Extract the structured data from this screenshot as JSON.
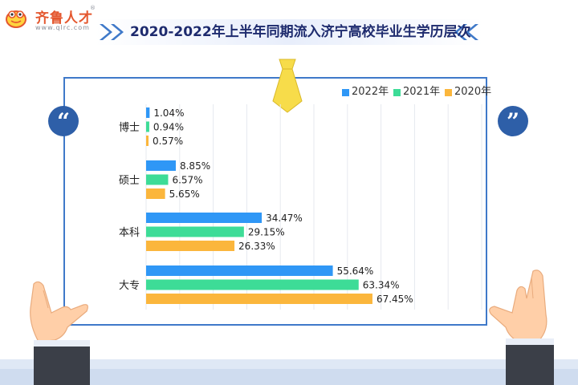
{
  "brand": {
    "name": "齐鲁人才",
    "url": "www.qlrc.com",
    "registered": "®"
  },
  "title": "2020-2022年上半年同期流入济宁高校毕业生学历层次",
  "chart_data": {
    "type": "bar",
    "orientation": "horizontal",
    "categories": [
      "博士",
      "硕士",
      "本科",
      "大专"
    ],
    "series": [
      {
        "name": "2022年",
        "color": "#2f97f6",
        "values": [
          1.04,
          8.85,
          34.47,
          55.64
        ],
        "labels": [
          "1.04%",
          "8.85%",
          "34.47%",
          "55.64%"
        ]
      },
      {
        "name": "2021年",
        "color": "#3ddc97",
        "values": [
          0.94,
          6.57,
          29.15,
          63.34
        ],
        "labels": [
          "0.94%",
          "6.57%",
          "29.15%",
          "63.34%"
        ]
      },
      {
        "name": "2020年",
        "color": "#fbb63c",
        "values": [
          0.57,
          5.65,
          26.33,
          67.45
        ],
        "labels": [
          "0.57%",
          "5.65%",
          "26.33%",
          "67.45%"
        ]
      }
    ],
    "xlim": [
      0,
      100
    ],
    "legend_position": "top-right",
    "grid": true,
    "axis_unit": "%"
  },
  "colors": {
    "frame": "#3f79c9",
    "title_text": "#1e2b6e",
    "brand": "#e4572e",
    "tie": "#f7dc4a"
  },
  "icons": [
    "qlrc-frog-logo",
    "open-quote-icon",
    "close-quote-icon",
    "tie-icon",
    "double-chevron-right-icon",
    "double-chevron-left-icon",
    "hand-holding-board-left",
    "hand-holding-board-right"
  ]
}
